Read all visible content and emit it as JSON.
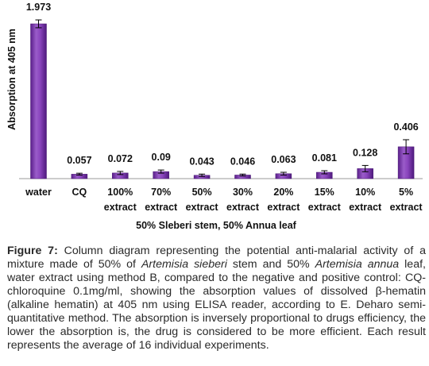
{
  "chart_data": {
    "type": "bar",
    "categories": [
      "water",
      "CQ",
      "100% extract",
      "70% extract",
      "50% extract",
      "30% extract",
      "20% extract",
      "15% extract",
      "10% extract",
      "5% extract"
    ],
    "category_lines": [
      [
        "water"
      ],
      [
        "CQ"
      ],
      [
        "100%",
        "extract"
      ],
      [
        "70%",
        "extract"
      ],
      [
        "50%",
        "extract"
      ],
      [
        "30%",
        "extract"
      ],
      [
        "20%",
        "extract"
      ],
      [
        "15%",
        "extract"
      ],
      [
        "10%",
        "extract"
      ],
      [
        "5%",
        "extract"
      ]
    ],
    "values": [
      1.973,
      0.057,
      0.072,
      0.09,
      0.043,
      0.046,
      0.063,
      0.081,
      0.128,
      0.406
    ],
    "value_labels": [
      "1.973",
      "0.057",
      "0.072",
      "0.09",
      "0.043",
      "0.046",
      "0.063",
      "0.081",
      "0.128",
      "0.406"
    ],
    "error": [
      0.05,
      0.012,
      0.02,
      0.02,
      0.015,
      0.012,
      0.018,
      0.02,
      0.04,
      0.09
    ],
    "ylabel": "Absorption at 405 nm",
    "xlabel": "50% Sleberi stem, 50% Annua leaf",
    "ylim": [
      0,
      2.0
    ],
    "bar_color": "#7030a0",
    "grid": false
  },
  "caption": {
    "label": "Figure 7:",
    "t1": " Column diagram representing the potential anti-malarial activity of a mixture made of 50% of ",
    "i1": "Artemisia sieberi",
    "t2": " stem and 50% ",
    "i2": "Artemisia annua",
    "t3": " leaf, water extract using method B, compared to the negative and positive control: CQ-chloroquine 0.1mg/ml, showing the absorption values of dissolved β-hematin (alkaline hematin) at 405 nm using ELISA reader, according to E. Deharo semi-quantitative method. The absorption is inversely proportional to drugs efficiency, the lower the absorption is, the drug is considered to be more efficient. Each result represents the average of 16 individual experiments."
  }
}
